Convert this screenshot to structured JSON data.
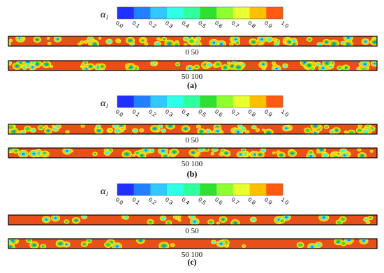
{
  "colormap": [
    "#2030ff",
    "#2080ff",
    "#30c8ff",
    "#30ffe8",
    "#30ffa0",
    "#30e030",
    "#90ff30",
    "#e8ff30",
    "#ffc000",
    "#ff5a10"
  ],
  "panels": [
    {
      "colorbar": {
        "label": "α",
        "label_sub": "l",
        "ticks": [
          "0.0",
          "0.1",
          "0.2",
          "0.3",
          "0.4",
          "0.5",
          "0.6",
          "0.7",
          "0.8",
          "0.9",
          "1.0"
        ]
      },
      "strips": [
        {
          "label": "0 50"
        },
        {
          "label": "50 100"
        }
      ],
      "caption": "(a)"
    },
    {
      "colorbar": {
        "label": "α",
        "label_sub": "l",
        "ticks": [
          "0.0",
          "0.1",
          "0.2",
          "0.3",
          "0.4",
          "0.5",
          "0.6",
          "0.7",
          "0.8",
          "0.9",
          "1.0"
        ]
      },
      "strips": [
        {
          "label": "0 50"
        },
        {
          "label": "50 100"
        }
      ],
      "caption": "(b)"
    },
    {
      "colorbar": {
        "label": "α",
        "label_sub": "l",
        "ticks": [
          "0.0",
          "0.1",
          "0.2",
          "0.3",
          "0.4",
          "0.5",
          "0.6",
          "0.7",
          "0.8",
          "0.9",
          "1.0"
        ]
      },
      "strips": [
        {
          "label": "0 50"
        },
        {
          "label": "50 100"
        }
      ],
      "caption": "(c)"
    }
  ]
}
